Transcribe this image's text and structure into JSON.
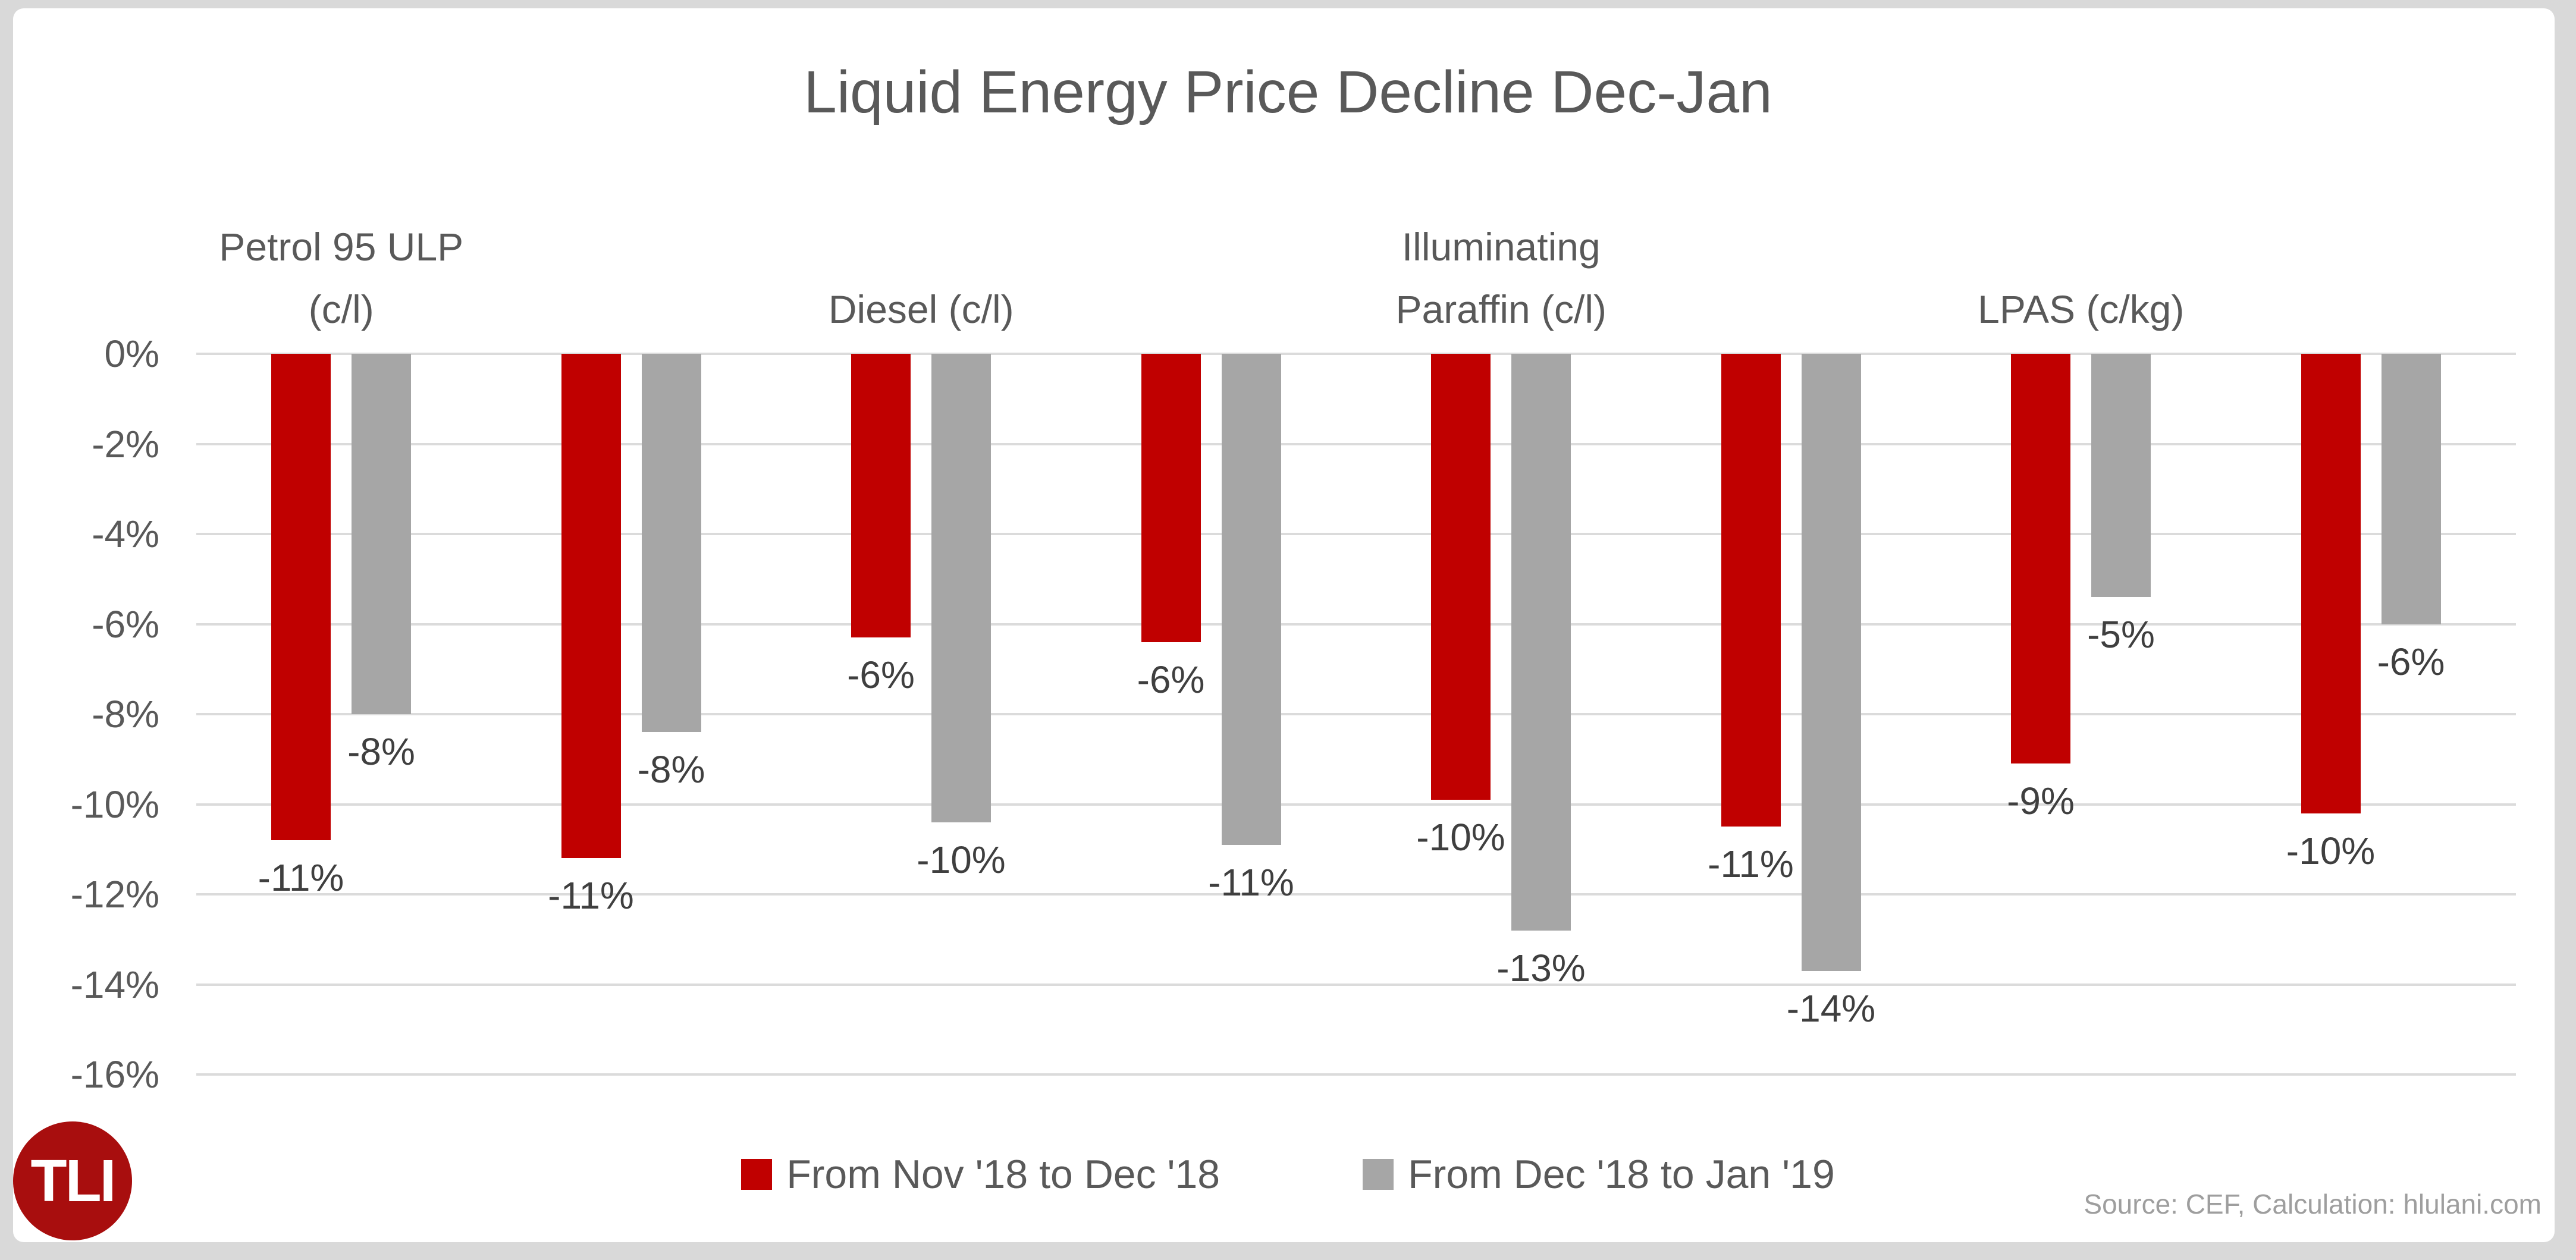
{
  "title": "Liquid Energy Price Decline Dec-Jan",
  "source_note": "Source: CEF, Calculation: hlulani.com",
  "logo": {
    "text": "TLI",
    "background_color": "#A80E0E",
    "text_color": "#FFFFFF"
  },
  "colors": {
    "series_red": "#C00000",
    "series_gray": "#A6A6A6",
    "title_text": "#595959",
    "axis_text": "#595959",
    "data_label_text": "#3F3F3F",
    "gridline": "#DBDBDB",
    "frame_background": "#D9D9D9",
    "card_background": "#FFFFFF",
    "source_text": "#9E9E9E"
  },
  "chart_data": {
    "type": "bar",
    "title": "Liquid Energy Price Decline Dec-Jan",
    "categories": [
      "Petrol 95 ULP (c/l)",
      "Diesel (c/l)",
      "Illuminating Paraffin (c/l)",
      "LPAS (c/kg)"
    ],
    "category_label_lines": [
      [
        "Petrol 95 ULP",
        "(c/l)"
      ],
      [
        "Diesel (c/l)"
      ],
      [
        "Illuminating",
        "Paraffin (c/l)"
      ],
      [
        "LPAS (c/kg)"
      ]
    ],
    "pairs_per_category": 2,
    "x_slots": 8,
    "series": [
      {
        "name": "From Nov '18 to Dec '18",
        "color": "#C00000",
        "values": [
          -10.8,
          -11.2,
          -6.3,
          -6.4,
          -9.9,
          -10.5,
          -9.1,
          -10.2
        ],
        "labels": [
          "-11%",
          "-11%",
          "-6%",
          "-6%",
          "-10%",
          "-11%",
          "-9%",
          "-10%"
        ]
      },
      {
        "name": "From Dec '18 to Jan '19",
        "color": "#A6A6A6",
        "values": [
          -8.0,
          -8.4,
          -10.4,
          -10.9,
          -12.8,
          -13.7,
          -5.4,
          -6.0
        ],
        "labels": [
          "-8%",
          "-8%",
          "-10%",
          "-11%",
          "-13%",
          "-14%",
          "-5%",
          "-6%"
        ]
      }
    ],
    "ylim": [
      -16,
      0
    ],
    "ytick_step": 2,
    "yticks": [
      "0%",
      "-2%",
      "-4%",
      "-6%",
      "-8%",
      "-10%",
      "-12%",
      "-14%",
      "-16%"
    ],
    "grid": true,
    "legend_position": "bottom"
  }
}
